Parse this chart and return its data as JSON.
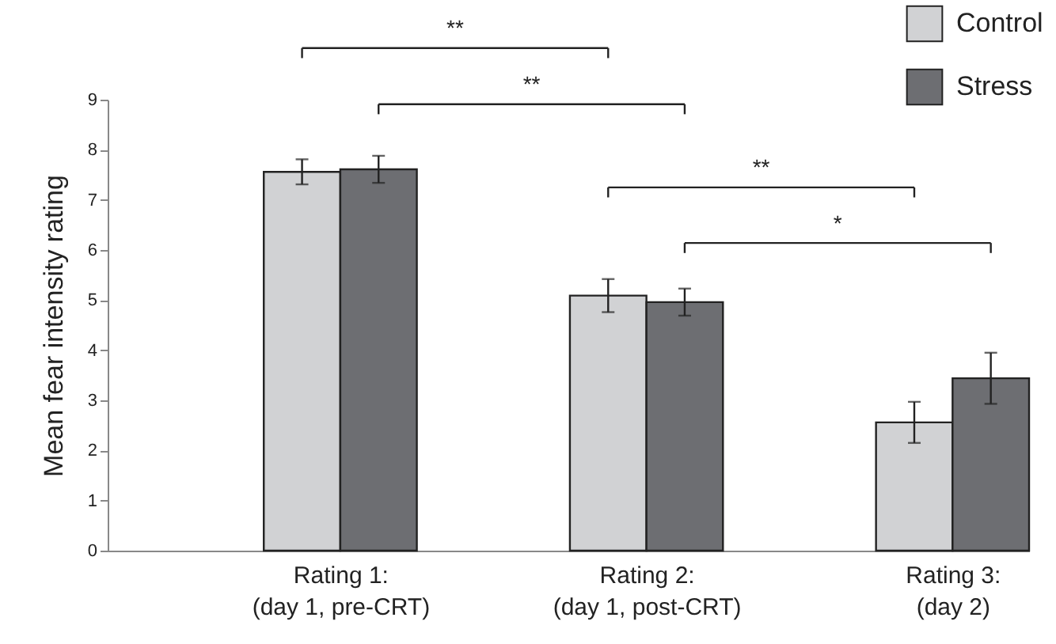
{
  "chart_data": {
    "type": "bar",
    "categories": [
      "Rating 1:\n(day 1, pre-CRT)",
      "Rating 2:\n(day 1, post-CRT)",
      "Rating 3:\n(day 2)"
    ],
    "ylabel": "Mean fear intensity rating",
    "series": [
      {
        "name": "Control",
        "color": "#d1d2d4",
        "values": [
          7.56,
          5.09,
          2.56
        ],
        "errors": [
          0.25,
          0.33,
          0.41
        ]
      },
      {
        "name": "Stress",
        "color": "#6d6e72",
        "values": [
          7.61,
          4.96,
          3.44
        ],
        "errors": [
          0.27,
          0.27,
          0.51
        ]
      }
    ],
    "ylim": [
      0,
      9
    ],
    "yticks": [
      0,
      1,
      2,
      3,
      4,
      5,
      6,
      7,
      8,
      9
    ],
    "annotations": [
      "**",
      "**",
      "**",
      "*"
    ],
    "legend": "top right",
    "grid": false
  }
}
